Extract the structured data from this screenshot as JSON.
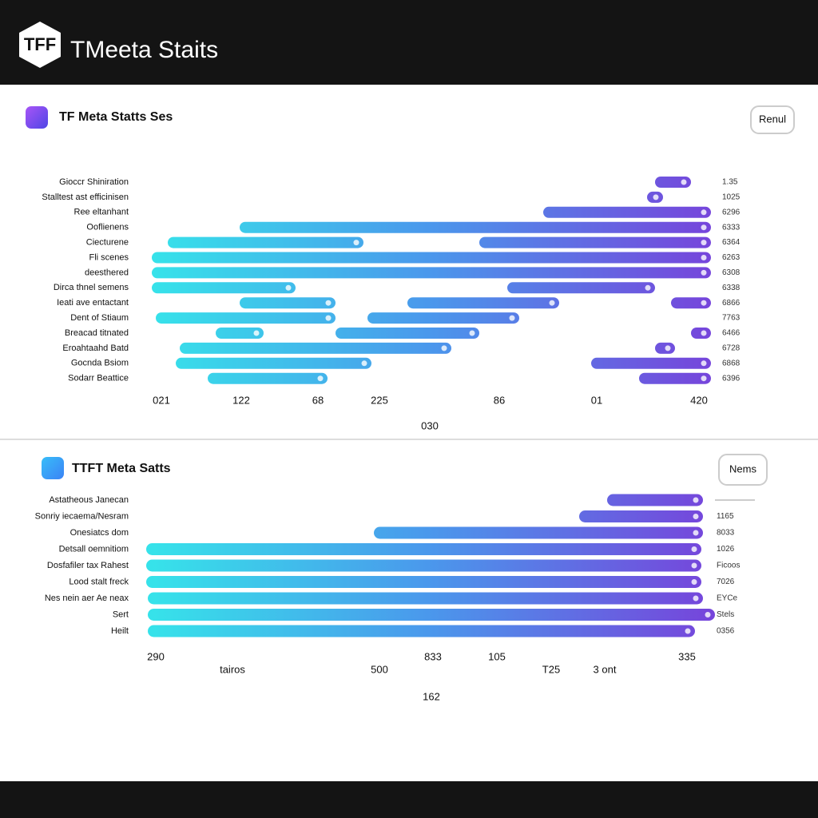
{
  "header": {
    "logo": "TFF",
    "title": "TMeeta Staits"
  },
  "panels": [
    {
      "title": "TF Meta Statts Ses",
      "button": "Renul",
      "rows": [
        {
          "label": "Gioccr Shiniration",
          "value": "1.35"
        },
        {
          "label": "Stalltest ast efficinisen",
          "value": "1025"
        },
        {
          "label": "Ree eltanhant",
          "value": "6296"
        },
        {
          "label": "Ooflienens",
          "value": "6333"
        },
        {
          "label": "Ciecturene",
          "value": "6364"
        },
        {
          "label": "Fli scenes",
          "value": "6263"
        },
        {
          "label": "deesthered",
          "value": "6308"
        },
        {
          "label": "Dirca thnel semens",
          "value": "6338"
        },
        {
          "label": "Ieati ave entactant",
          "value": "6866"
        },
        {
          "label": "Dent of Stiaum",
          "value": "7763"
        },
        {
          "label": "Breacad titnated",
          "value": "6466"
        },
        {
          "label": "Eroahtaahd Batd",
          "value": "6728"
        },
        {
          "label": "Gocnda Bsiom",
          "value": "6868"
        },
        {
          "label": "Sodarr Beattice",
          "value": "6396"
        }
      ],
      "axis_labels": [
        "021",
        "122",
        "68",
        "225",
        "86",
        "01",
        "420",
        "030"
      ]
    },
    {
      "title": "TTFT Meta Satts",
      "button": "Nems",
      "rows": [
        {
          "label": "Astatheous Janecan"
        },
        {
          "label": "Sonriy iecaema/Nesram",
          "value": "1165"
        },
        {
          "label": "Onesiatcs dom",
          "value": "8033"
        },
        {
          "label": "Detsall oemnitiom",
          "value": "1026"
        },
        {
          "label": "Dosfafiler tax Rahest",
          "value": "Ficoos"
        },
        {
          "label": "Lood stalt freck",
          "value": "7026"
        },
        {
          "label": "Nes nein aer Ae neax",
          "value": "EYCe"
        },
        {
          "label": "Sert",
          "value": "Stels"
        },
        {
          "label": "Heilt",
          "value": "0356"
        }
      ],
      "axis_labels": [
        "290",
        "tairos",
        "500",
        "833",
        "105",
        "T25",
        "3 ont",
        "335",
        "162"
      ]
    }
  ]
}
